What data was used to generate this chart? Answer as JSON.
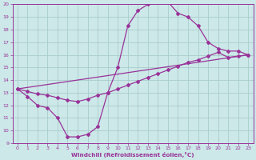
{
  "xlabel": "Windchill (Refroidissement éolien,°C)",
  "bg_color": "#cce8e8",
  "line_color": "#993399",
  "grid_color": "#aacccc",
  "xlim": [
    -0.5,
    23.5
  ],
  "ylim": [
    9,
    20
  ],
  "xticks": [
    0,
    1,
    2,
    3,
    4,
    5,
    6,
    7,
    8,
    9,
    10,
    11,
    12,
    13,
    14,
    15,
    16,
    17,
    18,
    19,
    20,
    21,
    22,
    23
  ],
  "yticks": [
    9,
    10,
    11,
    12,
    13,
    14,
    15,
    16,
    17,
    18,
    19,
    20
  ],
  "line1_x": [
    0,
    1,
    2,
    3,
    4,
    5,
    6,
    7,
    8,
    9,
    10,
    11,
    12,
    13,
    14,
    15,
    16,
    17,
    18,
    19,
    20,
    21,
    22,
    23
  ],
  "line1_y": [
    13.3,
    12.7,
    12.0,
    11.8,
    11.0,
    9.5,
    9.5,
    9.7,
    10.3,
    13.0,
    15.0,
    18.3,
    19.5,
    20.0,
    20.2,
    20.2,
    19.3,
    19.0,
    18.3,
    17.0,
    16.5,
    16.3,
    16.3,
    16.0
  ],
  "line2_x": [
    0,
    1,
    2,
    3,
    4,
    5,
    6,
    7,
    8,
    9,
    10,
    11,
    12,
    13,
    14,
    15,
    16,
    17,
    18,
    19,
    20,
    21,
    22,
    23
  ],
  "line2_y": [
    13.3,
    13.1,
    12.9,
    12.8,
    12.6,
    12.4,
    12.3,
    12.5,
    12.8,
    13.0,
    13.3,
    13.6,
    13.9,
    14.2,
    14.5,
    14.8,
    15.1,
    15.4,
    15.6,
    15.9,
    16.2,
    15.8,
    15.9,
    16.0
  ],
  "line3_x": [
    0,
    23
  ],
  "line3_y": [
    13.3,
    16.0
  ]
}
